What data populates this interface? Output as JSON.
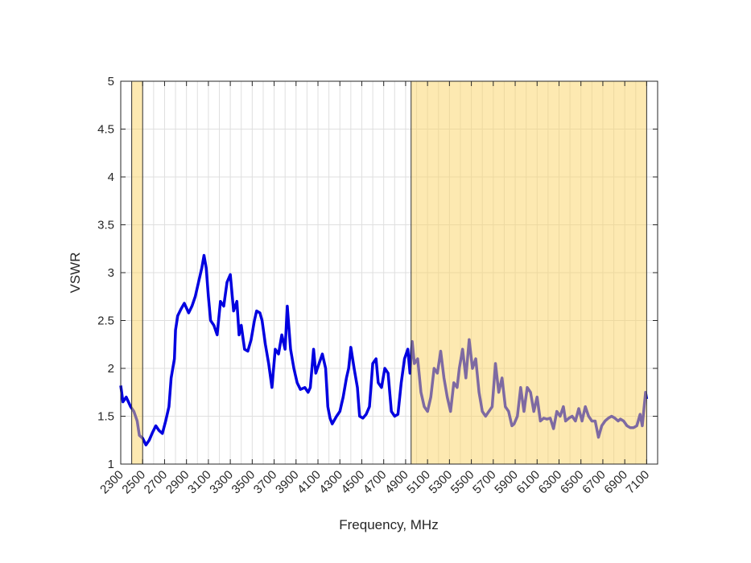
{
  "chart_data": {
    "type": "line",
    "xlabel": "Frequency, MHz",
    "ylabel": "VSWR",
    "xlim": [
      2300,
      7200
    ],
    "ylim": [
      1,
      5
    ],
    "xticks": [
      2300,
      2500,
      2700,
      2900,
      3100,
      3300,
      3500,
      3700,
      3900,
      4100,
      4300,
      4500,
      4700,
      4900,
      5100,
      5300,
      5500,
      5700,
      5900,
      6100,
      6300,
      6500,
      6700,
      6900,
      7100
    ],
    "xminor_ticks": [
      2300,
      2400,
      2500,
      2600,
      2700,
      2800,
      2900,
      3000,
      3100,
      3200,
      3300,
      3400,
      3500,
      3600,
      3700,
      3800,
      3900,
      4000,
      4100,
      4200,
      4300,
      4400,
      4500,
      4600,
      4700,
      4800,
      4900,
      5000,
      5100,
      5200,
      5300,
      5400,
      5500,
      5600,
      5700,
      5800,
      5900,
      6000,
      6100,
      6200,
      6300,
      6400,
      6500,
      6600,
      6700,
      6800,
      6900,
      7000,
      7100,
      7200
    ],
    "yticks": [
      1,
      1.5,
      2,
      2.5,
      3,
      3.5,
      4,
      4.5,
      5
    ],
    "grid": true,
    "shaded_regions": [
      [
        2400,
        2500
      ],
      [
        4950,
        7100
      ]
    ],
    "shade_color": "#fcd463",
    "x": [
      2300,
      2320,
      2350,
      2390,
      2420,
      2450,
      2470,
      2500,
      2530,
      2560,
      2590,
      2620,
      2650,
      2680,
      2710,
      2740,
      2760,
      2790,
      2800,
      2820,
      2850,
      2880,
      2920,
      2950,
      2980,
      3010,
      3040,
      3060,
      3080,
      3100,
      3120,
      3150,
      3180,
      3210,
      3240,
      3270,
      3300,
      3330,
      3360,
      3380,
      3400,
      3430,
      3460,
      3490,
      3520,
      3540,
      3570,
      3590,
      3620,
      3650,
      3680,
      3710,
      3740,
      3770,
      3800,
      3820,
      3850,
      3880,
      3910,
      3940,
      3980,
      4010,
      4030,
      4060,
      4080,
      4110,
      4140,
      4170,
      4190,
      4210,
      4230,
      4270,
      4300,
      4330,
      4360,
      4380,
      4400,
      4430,
      4460,
      4480,
      4510,
      4540,
      4570,
      4600,
      4630,
      4650,
      4680,
      4710,
      4740,
      4770,
      4800,
      4830,
      4860,
      4890,
      4920,
      4940,
      4960,
      4980,
      5010,
      5040,
      5070,
      5100,
      5130,
      5160,
      5190,
      5220,
      5250,
      5280,
      5310,
      5340,
      5370,
      5390,
      5420,
      5450,
      5480,
      5510,
      5540,
      5570,
      5600,
      5630,
      5660,
      5690,
      5720,
      5750,
      5780,
      5810,
      5840,
      5870,
      5890,
      5920,
      5950,
      5980,
      6010,
      6040,
      6070,
      6100,
      6130,
      6160,
      6190,
      6220,
      6250,
      6280,
      6310,
      6340,
      6360,
      6390,
      6420,
      6450,
      6480,
      6510,
      6540,
      6570,
      6600,
      6630,
      6660,
      6690,
      6720,
      6750,
      6780,
      6810,
      6840,
      6860,
      6890,
      6920,
      6950,
      6980,
      7010,
      7040,
      7060,
      7090,
      7100
    ],
    "series": [
      {
        "color": "#0000e0",
        "values": [
          1.82,
          1.65,
          1.7,
          1.6,
          1.55,
          1.45,
          1.3,
          1.27,
          1.2,
          1.25,
          1.33,
          1.4,
          1.35,
          1.32,
          1.45,
          1.6,
          1.9,
          2.1,
          2.4,
          2.55,
          2.62,
          2.68,
          2.58,
          2.65,
          2.75,
          2.9,
          3.05,
          3.18,
          3.05,
          2.75,
          2.5,
          2.45,
          2.35,
          2.7,
          2.65,
          2.9,
          2.98,
          2.6,
          2.7,
          2.35,
          2.45,
          2.2,
          2.18,
          2.3,
          2.5,
          2.6,
          2.58,
          2.5,
          2.25,
          2.05,
          1.8,
          2.2,
          2.15,
          2.35,
          2.2,
          2.65,
          2.2,
          2.0,
          1.85,
          1.78,
          1.8,
          1.75,
          1.8,
          2.2,
          1.95,
          2.05,
          2.15,
          2.0,
          1.6,
          1.48,
          1.42,
          1.5,
          1.55,
          1.7,
          1.9,
          2.0,
          2.22,
          2.0,
          1.8,
          1.5,
          1.48,
          1.52,
          1.6,
          2.05,
          2.1,
          1.85,
          1.8,
          2.0,
          1.95,
          1.55,
          1.5,
          1.52,
          1.85,
          2.1,
          2.2,
          1.95,
          2.28,
          2.05,
          2.1,
          1.75,
          1.6,
          1.55,
          1.7,
          2.0,
          1.95,
          2.18,
          1.9,
          1.7,
          1.55,
          1.85,
          1.8,
          2.0,
          2.2,
          1.9,
          2.3,
          2.0,
          2.1,
          1.75,
          1.55,
          1.5,
          1.55,
          1.6,
          2.05,
          1.75,
          1.9,
          1.6,
          1.55,
          1.4,
          1.42,
          1.5,
          1.8,
          1.55,
          1.8,
          1.75,
          1.55,
          1.7,
          1.45,
          1.48,
          1.47,
          1.48,
          1.37,
          1.55,
          1.5,
          1.6,
          1.45,
          1.48,
          1.5,
          1.45,
          1.58,
          1.45,
          1.6,
          1.5,
          1.45,
          1.45,
          1.28,
          1.4,
          1.45,
          1.48,
          1.5,
          1.48,
          1.45,
          1.47,
          1.45,
          1.4,
          1.38,
          1.38,
          1.4,
          1.52,
          1.4,
          1.75,
          1.68
        ]
      }
    ]
  }
}
